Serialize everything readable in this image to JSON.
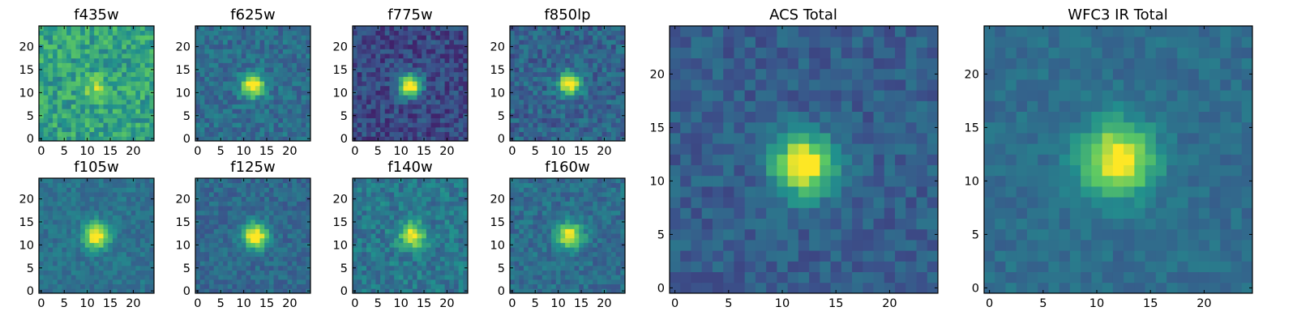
{
  "chart_data": {
    "type": "heatmap",
    "description_free": true,
    "grid_size": 25,
    "colormap": [
      "#440154",
      "#3b528b",
      "#21908d",
      "#5dc963",
      "#fde725"
    ],
    "panels": [
      {
        "id": "f435w",
        "title": "f435w",
        "xticks": [
          "0",
          "5",
          "10",
          "15",
          "20"
        ],
        "yticks": [
          "0",
          "5",
          "10",
          "15",
          "20"
        ],
        "xlim": [
          0,
          25
        ],
        "ylim": [
          0,
          25
        ],
        "center": [
          12.5,
          11.5
        ],
        "peak": 0.25,
        "sigma": 1.8,
        "noise": 0.32,
        "background": 0.58,
        "seed": 11
      },
      {
        "id": "f625w",
        "title": "f625w",
        "xticks": [
          "0",
          "5",
          "10",
          "15",
          "20"
        ],
        "yticks": [
          "0",
          "5",
          "10",
          "15",
          "20"
        ],
        "xlim": [
          0,
          25
        ],
        "ylim": [
          0,
          25
        ],
        "center": [
          12.5,
          12.0
        ],
        "peak": 0.75,
        "sigma": 1.7,
        "noise": 0.22,
        "background": 0.36,
        "seed": 23
      },
      {
        "id": "f775w",
        "title": "f775w",
        "xticks": [
          "0",
          "5",
          "10",
          "15",
          "20"
        ],
        "yticks": [
          "0",
          "5",
          "10",
          "15",
          "20"
        ],
        "xlim": [
          0,
          25
        ],
        "ylim": [
          0,
          25
        ],
        "center": [
          12.5,
          12.0
        ],
        "peak": 0.9,
        "sigma": 1.7,
        "noise": 0.24,
        "background": 0.22,
        "seed": 37
      },
      {
        "id": "f850lp",
        "title": "f850lp",
        "xticks": [
          "0",
          "5",
          "10",
          "15",
          "20"
        ],
        "yticks": [
          "0",
          "5",
          "10",
          "15",
          "20"
        ],
        "xlim": [
          0,
          25
        ],
        "ylim": [
          0,
          25
        ],
        "center": [
          13.0,
          12.5
        ],
        "peak": 0.75,
        "sigma": 1.7,
        "noise": 0.24,
        "background": 0.32,
        "seed": 41
      },
      {
        "id": "f105w",
        "title": "f105w",
        "xticks": [
          "0",
          "5",
          "10",
          "15",
          "20"
        ],
        "yticks": [
          "0",
          "5",
          "10",
          "15",
          "20"
        ],
        "xlim": [
          0,
          25
        ],
        "ylim": [
          0,
          25
        ],
        "center": [
          12.5,
          12.5
        ],
        "peak": 0.7,
        "sigma": 1.9,
        "noise": 0.16,
        "background": 0.38,
        "seed": 53
      },
      {
        "id": "f125w",
        "title": "f125w",
        "xticks": [
          "0",
          "5",
          "10",
          "15",
          "20"
        ],
        "yticks": [
          "0",
          "5",
          "10",
          "15",
          "20"
        ],
        "xlim": [
          0,
          25
        ],
        "ylim": [
          0,
          25
        ],
        "center": [
          13.0,
          12.5
        ],
        "peak": 0.75,
        "sigma": 1.9,
        "noise": 0.18,
        "background": 0.34,
        "seed": 67
      },
      {
        "id": "f140w",
        "title": "f140w",
        "xticks": [
          "0",
          "5",
          "10",
          "15",
          "20"
        ],
        "yticks": [
          "0",
          "5",
          "10",
          "15",
          "20"
        ],
        "xlim": [
          0,
          25
        ],
        "ylim": [
          0,
          25
        ],
        "center": [
          13.0,
          12.5
        ],
        "peak": 0.6,
        "sigma": 1.9,
        "noise": 0.24,
        "background": 0.4,
        "seed": 79
      },
      {
        "id": "f160w",
        "title": "f160w",
        "xticks": [
          "0",
          "5",
          "10",
          "15",
          "20"
        ],
        "yticks": [
          "0",
          "5",
          "10",
          "15",
          "20"
        ],
        "xlim": [
          0,
          25
        ],
        "ylim": [
          0,
          25
        ],
        "center": [
          13.0,
          12.5
        ],
        "peak": 0.7,
        "sigma": 1.9,
        "noise": 0.2,
        "background": 0.36,
        "seed": 83
      },
      {
        "id": "acs_total",
        "title": "ACS Total",
        "xticks": [
          "0",
          "5",
          "10",
          "15",
          "20"
        ],
        "yticks": [
          "0",
          "5",
          "10",
          "15",
          "20"
        ],
        "xlim": [
          0,
          25
        ],
        "ylim": [
          0,
          25
        ],
        "center": [
          12.5,
          12.0
        ],
        "peak": 0.8,
        "sigma": 1.9,
        "noise": 0.18,
        "background": 0.3,
        "seed": 97
      },
      {
        "id": "wfc3_ir_total",
        "title": "WFC3 IR Total",
        "xticks": [
          "0",
          "5",
          "10",
          "15",
          "20"
        ],
        "yticks": [
          "0",
          "5",
          "10",
          "15",
          "20"
        ],
        "xlim": [
          0,
          25
        ],
        "ylim": [
          0,
          25
        ],
        "center": [
          12.5,
          12.5
        ],
        "peak": 0.7,
        "sigma": 2.3,
        "noise": 0.13,
        "background": 0.36,
        "seed": 101
      }
    ]
  }
}
